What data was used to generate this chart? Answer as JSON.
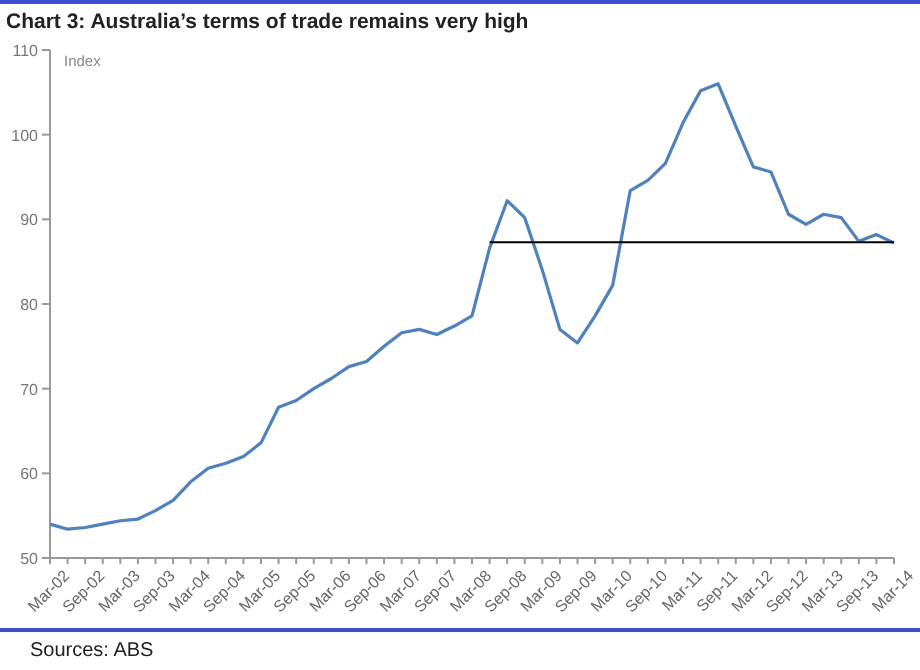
{
  "chart_data": {
    "type": "line",
    "title": "Chart 3: Australia’s terms of trade remains very high",
    "ylabel": "Index",
    "annotations": [
      "Sources: ABS"
    ],
    "categories": [
      "Mar-02",
      null,
      "Sep-02",
      null,
      "Mar-03",
      null,
      "Sep-03",
      null,
      "Mar-04",
      null,
      "Sep-04",
      null,
      "Mar-05",
      null,
      "Sep-05",
      null,
      "Mar-06",
      null,
      "Sep-06",
      null,
      "Mar-07",
      null,
      "Sep-07",
      null,
      "Mar-08",
      null,
      "Sep-08",
      null,
      "Mar-09",
      null,
      "Sep-09",
      null,
      "Mar-10",
      null,
      "Sep-10",
      null,
      "Mar-11",
      null,
      "Sep-11",
      null,
      "Mar-12",
      null,
      "Sep-12",
      null,
      "Mar-13",
      null,
      "Sep-13",
      null,
      "Mar-14"
    ],
    "series": [
      {
        "color": "#4f81bd",
        "values": [
          54,
          53.4,
          53.6,
          54,
          54.4,
          54.6,
          55.6,
          56.8,
          59,
          60.6,
          61.2,
          62,
          63.6,
          67.8,
          68.6,
          70,
          71.2,
          72.6,
          73.2,
          75,
          76.6,
          77,
          76.4,
          77.4,
          78.6,
          86.6,
          92.2,
          90.2,
          84,
          77,
          75.4,
          78.6,
          82.2,
          93.4,
          94.6,
          96.6,
          101.4,
          105.2,
          106,
          101,
          96.2,
          95.6,
          90.6,
          89.4,
          90.6,
          90.2,
          87.4,
          88.2,
          87.2
        ]
      },
      {
        "color": "#000000",
        "values": [
          null,
          null,
          null,
          null,
          null,
          null,
          null,
          null,
          null,
          null,
          null,
          null,
          null,
          null,
          null,
          null,
          null,
          null,
          null,
          null,
          null,
          null,
          null,
          null,
          null,
          87.3,
          87.3,
          87.3,
          87.3,
          87.3,
          87.3,
          87.3,
          87.3,
          87.3,
          87.3,
          87.3,
          87.3,
          87.3,
          87.3,
          87.3,
          87.3,
          87.3,
          87.3,
          87.3,
          87.3,
          87.3,
          87.3,
          87.3,
          87.3
        ]
      }
    ],
    "ylim": [
      50,
      110
    ],
    "yticks": [
      50,
      60,
      70,
      80,
      90,
      100,
      110
    ],
    "grid": false,
    "marker": "none",
    "line_style": "solid"
  }
}
